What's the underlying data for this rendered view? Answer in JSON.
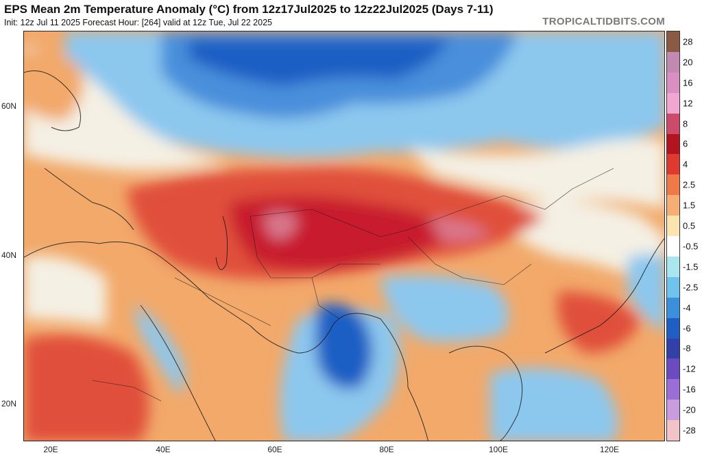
{
  "header": {
    "title": "EPS Mean 2m Temperature Anomaly (°C) from 12z17Jul2025 to 12z22Jul2025 (Days 7-11)",
    "subtitle": "Init: 12z Jul 11 2025   Forecast Hour: [264]   valid at 12z Tue, Jul 22 2025",
    "credit": "TROPICALTIDBITS.COM"
  },
  "map": {
    "lat_labels": [
      "60N",
      "40N",
      "20N"
    ],
    "lon_labels": [
      "20E",
      "40E",
      "60E",
      "80E",
      "100E",
      "120E"
    ],
    "region_colors": {
      "strong_cold": "#1f5fc4",
      "cold": "#4a8fdb",
      "cool": "#8cc7ee",
      "near_zero": "#f4f0e4",
      "warm": "#f2a96a",
      "hot": "#e0503a",
      "very_hot": "#c81e2e",
      "extreme": "#d8788e"
    }
  },
  "colorbar": {
    "labels": [
      "28",
      "20",
      "16",
      "12",
      "8",
      "6",
      "4",
      "2.5",
      "1.5",
      "0.5",
      "-0.5",
      "-1.5",
      "-2.5",
      "-4",
      "-6",
      "-8",
      "-12",
      "-16",
      "-20",
      "-28"
    ],
    "colors": [
      "#8a5a44",
      "#c28ab0",
      "#d98fc2",
      "#f2a6d2",
      "#cc4a6a",
      "#b3141f",
      "#de3a30",
      "#ef7a48",
      "#f6ae74",
      "#fce4b0",
      "#ffffff",
      "#a9e6f0",
      "#6fc3ec",
      "#3b8fdb",
      "#1f5fc4",
      "#3340a8",
      "#6a4cc0",
      "#9a6ed6",
      "#c99ce0",
      "#f2c4c8"
    ]
  }
}
